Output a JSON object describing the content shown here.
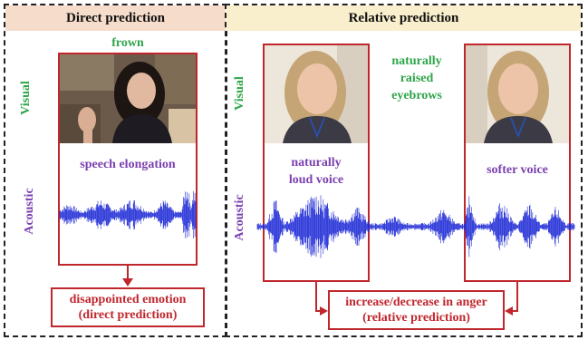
{
  "panels": {
    "direct": {
      "header": "Direct prediction",
      "visual_label": "Visual",
      "acoustic_label": "Acoustic",
      "visual_cue": "frown",
      "acoustic_cue": "speech elongation",
      "output_line1": "disappointed emotion",
      "output_line2": "(direct prediction)"
    },
    "relative": {
      "header": "Relative prediction",
      "visual_label": "Visual",
      "acoustic_label": "Acoustic",
      "visual_cue_lines": [
        "naturally",
        "raised",
        "eyebrows"
      ],
      "acoustic_cue_left_lines": [
        "naturally",
        "loud voice"
      ],
      "acoustic_cue_right": "softer voice",
      "output_line1": "increase/decrease in anger",
      "output_line2": "(relative prediction)"
    }
  },
  "colors": {
    "header_direct_bg": "#f6dccb",
    "header_relative_bg": "#f9efcc",
    "visual_label": "#2fa54a",
    "acoustic_label": "#7a3fb0",
    "box_border": "#c0272d",
    "waveform": "#1f2bd6"
  },
  "icons": [
    "down-arrow-icon",
    "right-arrow-icon",
    "left-arrow-icon"
  ]
}
